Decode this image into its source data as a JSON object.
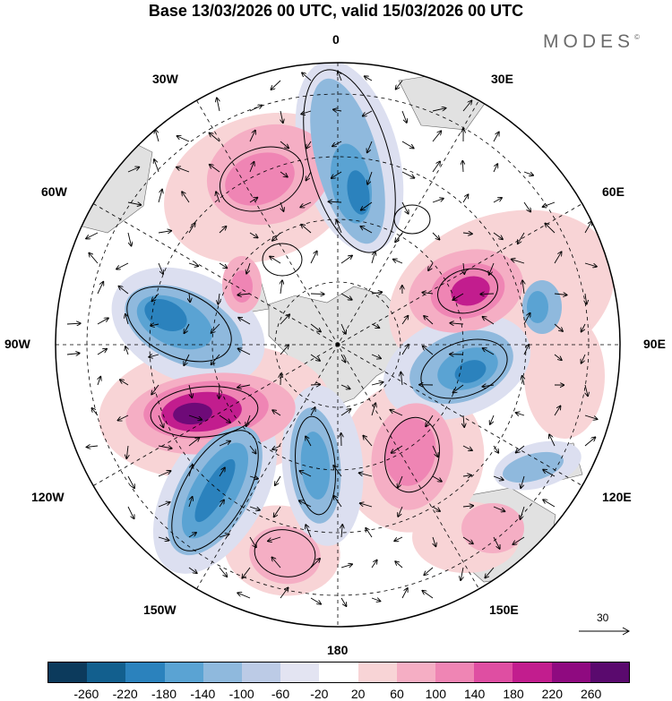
{
  "title": "Base 13/03/2026 00 UTC, valid 15/03/2026 00 UTC",
  "brand": "MODES",
  "brand_mark": "©",
  "longitude_labels": {
    "lon_0": "0",
    "lon_30e": "30E",
    "lon_60e": "60E",
    "lon_90e": "90E",
    "lon_120e": "120E",
    "lon_150e": "150E",
    "lon_180": "180",
    "lon_150w": "150W",
    "lon_120w": "120W",
    "lon_90w": "90W",
    "lon_60w": "60W",
    "lon_30w": "30W"
  },
  "reference_vector": "30",
  "colorbar": {
    "colors": [
      "#0c3a5c",
      "#125f8e",
      "#2b82bd",
      "#5aa3d3",
      "#8fb9dd",
      "#bccbe6",
      "#e3e4f2",
      "#ffffff",
      "#f8d4d6",
      "#f5aec4",
      "#ef85b4",
      "#df4ea2",
      "#c21d8e",
      "#8f0a80",
      "#5a0a6e"
    ],
    "tick_labels": [
      "-260",
      "-220",
      "-180",
      "-140",
      "-100",
      "-60",
      "-20",
      "20",
      "60",
      "100",
      "140",
      "180",
      "220",
      "260"
    ]
  },
  "map_colors": {
    "land": "#e1e1e1",
    "neg_strong": "#2b82bd",
    "neg_mid": "#5aa3d3",
    "neg_light": "#8fb9dd",
    "neg_faint": "#dcdff0",
    "pos_faint": "#f8d4d6",
    "pos_light": "#f5aec4",
    "pos_mid": "#ef85b4",
    "pos_strong": "#c21d8e",
    "pos_max": "#6e0a78"
  }
}
